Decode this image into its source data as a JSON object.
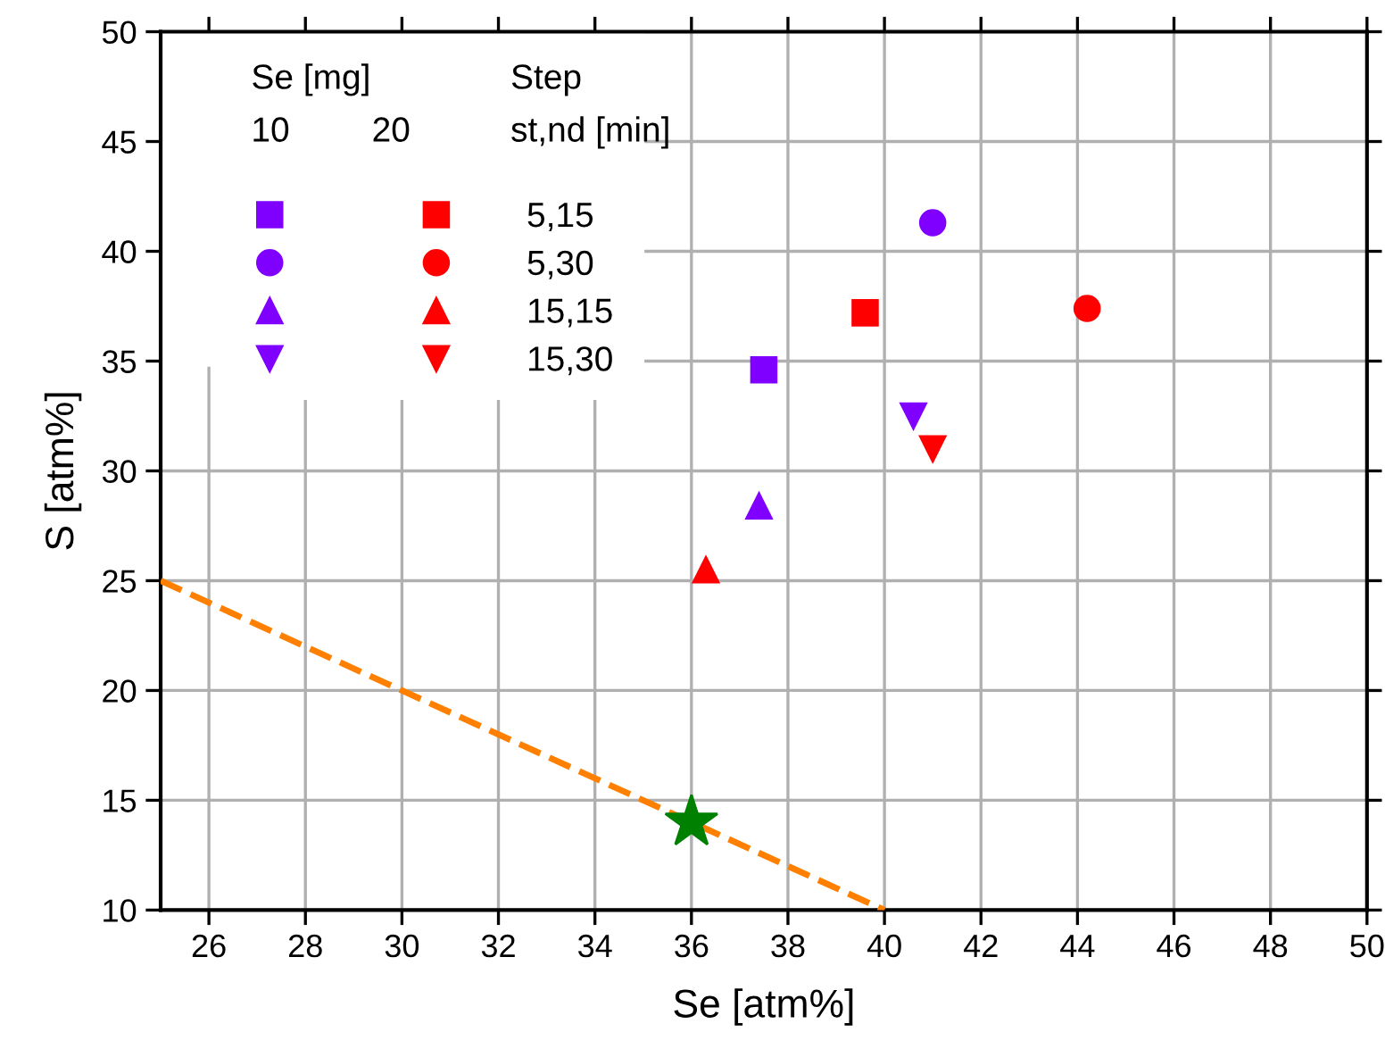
{
  "chart_data": {
    "type": "scatter",
    "xlabel": "Se [atm%]",
    "ylabel": "S [atm%]",
    "xlim": [
      25,
      50
    ],
    "ylim": [
      10,
      50
    ],
    "xticks": [
      26,
      28,
      30,
      32,
      34,
      36,
      38,
      40,
      42,
      44,
      46,
      48,
      50
    ],
    "yticks": [
      10,
      15,
      20,
      25,
      30,
      35,
      40,
      45,
      50
    ],
    "grid": true,
    "legend": "top left",
    "annotations": [
      "Se [mg]",
      "10",
      "20",
      "Step",
      "st,nd [min]"
    ],
    "series": [
      {
        "color": "#8000ff",
        "marker": "square",
        "x": [
          37.5
        ],
        "values": [
          34.6
        ]
      },
      {
        "name": "5,15",
        "color": "#ff0000",
        "marker": "square",
        "x": [
          39.6
        ],
        "values": [
          37.2
        ]
      },
      {
        "color": "#8000ff",
        "marker": "circle",
        "x": [
          41.0
        ],
        "values": [
          41.3
        ]
      },
      {
        "name": "5,30",
        "color": "#ff0000",
        "marker": "circle",
        "x": [
          44.2
        ],
        "values": [
          37.4
        ]
      },
      {
        "color": "#8000ff",
        "marker": "triangle",
        "x": [
          37.4
        ],
        "values": [
          28.4
        ]
      },
      {
        "name": "15,15",
        "color": "#ff0000",
        "marker": "triangle",
        "x": [
          36.3
        ],
        "values": [
          25.5
        ]
      },
      {
        "color": "#8000ff",
        "marker": "triangle",
        "x": [
          40.6
        ],
        "values": [
          32.5
        ]
      },
      {
        "name": "15,30",
        "color": "#ff0000",
        "marker": "triangle",
        "x": [
          41.0
        ],
        "values": [
          31.0
        ]
      },
      {
        "type": "line",
        "color": "#ff8000",
        "line_style": "dashed",
        "marker": "none",
        "x": [
          25,
          40
        ],
        "values": [
          25,
          10
        ]
      },
      {
        "color": "#008000",
        "marker": "star",
        "x": [
          36
        ],
        "values": [
          14
        ]
      }
    ]
  }
}
